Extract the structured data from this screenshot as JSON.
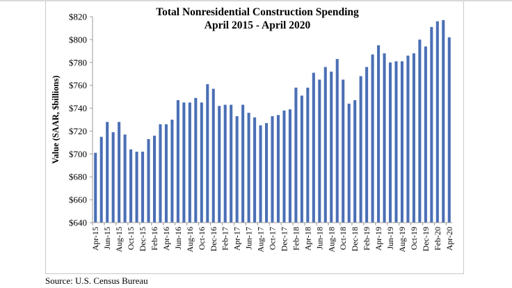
{
  "chart_data": {
    "type": "bar",
    "title": "Total Nonresidential Construction Spending",
    "subtitle": "April 2015 - April 2020",
    "xlabel": "",
    "ylabel": "Value (SAAR, $billions)",
    "ylim": [
      640,
      820
    ],
    "yticks": [
      640,
      660,
      680,
      700,
      720,
      740,
      760,
      780,
      800,
      820
    ],
    "ytick_labels": [
      "$640",
      "$660",
      "$680",
      "$700",
      "$720",
      "$740",
      "$760",
      "$780",
      "$800",
      "$820"
    ],
    "grid": false,
    "legend": "none",
    "bar_color": "#4a6fb5",
    "categories": [
      "Apr-15",
      "May-15",
      "Jun-15",
      "Jul-15",
      "Aug-15",
      "Sep-15",
      "Oct-15",
      "Nov-15",
      "Dec-15",
      "Jan-16",
      "Feb-16",
      "Mar-16",
      "Apr-16",
      "May-16",
      "Jun-16",
      "Jul-16",
      "Aug-16",
      "Sep-16",
      "Oct-16",
      "Nov-16",
      "Dec-16",
      "Jan-17",
      "Feb-17",
      "Mar-17",
      "Apr-17",
      "May-17",
      "Jun-17",
      "Jul-17",
      "Aug-17",
      "Sep-17",
      "Oct-17",
      "Nov-17",
      "Dec-17",
      "Jan-18",
      "Feb-18",
      "Mar-18",
      "Apr-18",
      "May-18",
      "Jun-18",
      "Jul-18",
      "Aug-18",
      "Sep-18",
      "Oct-18",
      "Nov-18",
      "Dec-18",
      "Jan-19",
      "Feb-19",
      "Mar-19",
      "Apr-19",
      "May-19",
      "Jun-19",
      "Jul-19",
      "Aug-19",
      "Sep-19",
      "Oct-19",
      "Nov-19",
      "Dec-19",
      "Jan-20",
      "Feb-20",
      "Mar-20",
      "Apr-20"
    ],
    "tick_labels_shown": [
      "Apr-15",
      "Jun-15",
      "Aug-15",
      "Oct-15",
      "Dec-15",
      "Feb-16",
      "Apr-16",
      "Jun-16",
      "Aug-16",
      "Oct-16",
      "Dec-16",
      "Feb-17",
      "Apr-17",
      "Jun-17",
      "Aug-17",
      "Oct-17",
      "Dec-17",
      "Feb-18",
      "Apr-18",
      "Jun-18",
      "Aug-18",
      "Oct-18",
      "Dec-18",
      "Feb-19",
      "Apr-19",
      "Jun-19",
      "Aug-19",
      "Oct-19",
      "Dec-19",
      "Feb-20",
      "Apr-20"
    ],
    "values": [
      701,
      715,
      728,
      719,
      728,
      717,
      704,
      702,
      702,
      713,
      716,
      726,
      726,
      730,
      747,
      745,
      745,
      749,
      745,
      761,
      757,
      742,
      743,
      743,
      733,
      743,
      736,
      732,
      725,
      727,
      733,
      734,
      738,
      739,
      758,
      751,
      758,
      771,
      765,
      776,
      772,
      783,
      765,
      744,
      747,
      768,
      776,
      787,
      795,
      788,
      780,
      781,
      781,
      786,
      788,
      800,
      794,
      811,
      816,
      817,
      802
    ]
  },
  "footer": {
    "source": "Source:  U.S. Census Bureau"
  }
}
